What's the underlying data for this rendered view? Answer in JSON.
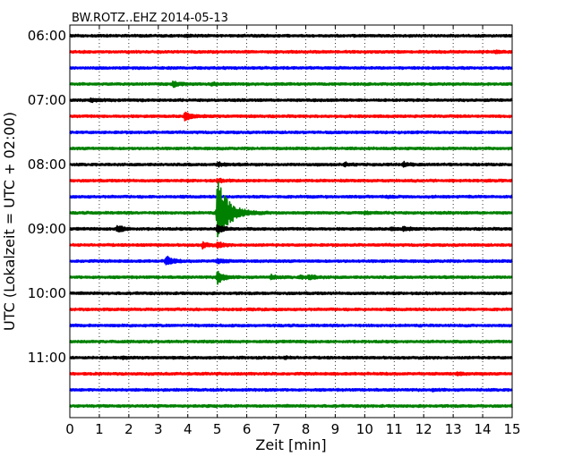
{
  "chart_data": {
    "type": "line",
    "chart_kind": "seismic helicorder (dayplot)",
    "title": "BW.ROTZ..EHZ 2014-05-13",
    "xlabel": "Zeit  [min]",
    "ylabel": "UTC (Lokalzeit = UTC + 02:00)",
    "xlim": [
      0,
      15
    ],
    "x_ticks": [
      0,
      1,
      2,
      3,
      4,
      5,
      6,
      7,
      8,
      9,
      10,
      11,
      12,
      13,
      14,
      15
    ],
    "grid": "vertical dotted lines at each minute",
    "y_tick_labels": [
      "06:00",
      "07:00",
      "08:00",
      "09:00",
      "10:00",
      "11:00"
    ],
    "trace_interval_min": 15,
    "trace_colors": [
      "#000000",
      "#ff0000",
      "#0000ff",
      "#008000"
    ],
    "traces": [
      {
        "start": "06:00",
        "events": [
          {
            "t_min": 3.9,
            "amp": 0.15
          }
        ]
      },
      {
        "start": "06:15",
        "events": [
          {
            "t_min": 14.4,
            "amp": 0.1
          }
        ]
      },
      {
        "start": "06:30",
        "events": []
      },
      {
        "start": "06:45",
        "events": [
          {
            "t_min": 3.5,
            "amp": 0.35
          },
          {
            "t_min": 4.8,
            "amp": 0.15
          }
        ]
      },
      {
        "start": "07:00",
        "events": [
          {
            "t_min": 0.7,
            "amp": 0.25
          }
        ]
      },
      {
        "start": "07:15",
        "events": [
          {
            "t_min": 3.9,
            "amp": 0.6
          }
        ]
      },
      {
        "start": "07:30",
        "events": []
      },
      {
        "start": "07:45",
        "events": []
      },
      {
        "start": "08:00",
        "events": [
          {
            "t_min": 5.0,
            "amp": 0.25
          },
          {
            "t_min": 9.3,
            "amp": 0.2
          },
          {
            "t_min": 11.3,
            "amp": 0.25
          }
        ]
      },
      {
        "start": "08:15",
        "events": [
          {
            "t_min": 5.0,
            "amp": 0.2
          }
        ]
      },
      {
        "start": "08:30",
        "events": [
          {
            "t_min": 10.7,
            "amp": 0.1
          }
        ]
      },
      {
        "start": "08:45",
        "events": [
          {
            "t_min": 5.0,
            "amp": 4.2
          },
          {
            "t_min": 10.0,
            "amp": 0.12
          }
        ]
      },
      {
        "start": "09:00",
        "events": [
          {
            "t_min": 1.6,
            "amp": 0.5
          },
          {
            "t_min": 5.0,
            "amp": 0.6
          },
          {
            "t_min": 10.9,
            "amp": 0.15
          },
          {
            "t_min": 11.3,
            "amp": 0.2
          }
        ]
      },
      {
        "start": "09:15",
        "events": [
          {
            "t_min": 4.5,
            "amp": 0.35
          },
          {
            "t_min": 5.0,
            "amp": 0.3
          }
        ]
      },
      {
        "start": "09:30",
        "events": [
          {
            "t_min": 3.25,
            "amp": 0.7
          },
          {
            "t_min": 5.0,
            "amp": 0.3
          }
        ]
      },
      {
        "start": "09:45",
        "events": [
          {
            "t_min": 5.0,
            "amp": 0.9
          },
          {
            "t_min": 6.8,
            "amp": 0.25
          },
          {
            "t_min": 7.8,
            "amp": 0.15
          },
          {
            "t_min": 8.1,
            "amp": 0.3
          }
        ]
      },
      {
        "start": "10:00",
        "events": []
      },
      {
        "start": "10:15",
        "events": []
      },
      {
        "start": "10:30",
        "events": []
      },
      {
        "start": "10:45",
        "events": []
      },
      {
        "start": "11:00",
        "events": [
          {
            "t_min": 1.8,
            "amp": 0.1
          },
          {
            "t_min": 7.3,
            "amp": 0.1
          }
        ]
      },
      {
        "start": "11:15",
        "events": [
          {
            "t_min": 13.1,
            "amp": 0.15
          }
        ]
      },
      {
        "start": "11:30",
        "events": [
          {
            "t_min": 12.3,
            "amp": 0.1
          }
        ]
      },
      {
        "start": "11:45",
        "events": [
          {
            "t_min": 15.0,
            "amp": 0.15
          }
        ]
      }
    ]
  }
}
